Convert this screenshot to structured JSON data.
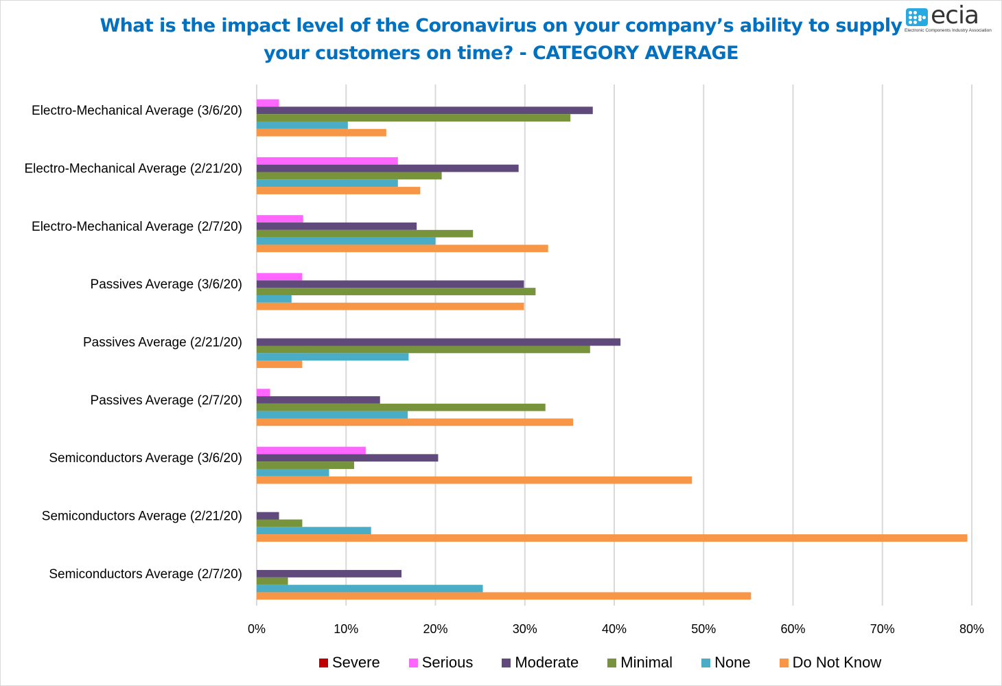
{
  "header": {
    "title_line1": "What is the impact level of the Coronavirus on your company’s ability to supply",
    "title_line2": "your customers on time? - CATEGORY  AVERAGE"
  },
  "logo": {
    "wordmark": "ecia",
    "tagline": "Electronic Components Industry Association"
  },
  "chart_data": {
    "type": "bar",
    "orientation": "horizontal",
    "title": "What is the impact level of the Coronavirus on your company’s ability to supply your customers on time? - CATEGORY AVERAGE",
    "xlabel": "",
    "ylabel": "",
    "xlim": [
      0,
      80
    ],
    "x_ticks": [
      "0%",
      "10%",
      "20%",
      "30%",
      "40%",
      "50%",
      "60%",
      "70%",
      "80%"
    ],
    "grid": "vertical",
    "legend_position": "bottom",
    "categories": [
      "Electro-Mechanical Average (3/6/20)",
      "Electro-Mechanical Average (2/21/20)",
      "Electro-Mechanical Average (2/7/20)",
      "Passives Average (3/6/20)",
      "Passives Average (2/21/20)",
      "Passives Average (2/7/20)",
      "Semiconductors Average (3/6/20)",
      "Semiconductors Average (2/21/20)",
      "Semiconductors Average (2/7/20)"
    ],
    "series": [
      {
        "name": "Severe",
        "color": "#c00000",
        "values": [
          0,
          0,
          0,
          0,
          0,
          0,
          0,
          0,
          0
        ]
      },
      {
        "name": "Serious",
        "color": "#ff66ff",
        "values": [
          2.5,
          15.8,
          5.2,
          5.1,
          0,
          1.5,
          12.2,
          0,
          0
        ]
      },
      {
        "name": "Moderate",
        "color": "#604a7b",
        "values": [
          37.6,
          29.3,
          17.9,
          29.9,
          40.7,
          13.8,
          20.3,
          2.5,
          16.2
        ]
      },
      {
        "name": "Minimal",
        "color": "#77933c",
        "values": [
          35.1,
          20.7,
          24.2,
          31.2,
          37.3,
          32.3,
          10.9,
          5.1,
          3.5
        ]
      },
      {
        "name": "None",
        "color": "#4bacc6",
        "values": [
          10.2,
          15.8,
          20.0,
          3.9,
          17.0,
          16.9,
          8.1,
          12.8,
          25.3
        ]
      },
      {
        "name": "Do Not Know",
        "color": "#f79646",
        "values": [
          14.5,
          18.3,
          32.6,
          29.9,
          5.1,
          35.4,
          48.7,
          79.5,
          55.3
        ]
      }
    ]
  }
}
